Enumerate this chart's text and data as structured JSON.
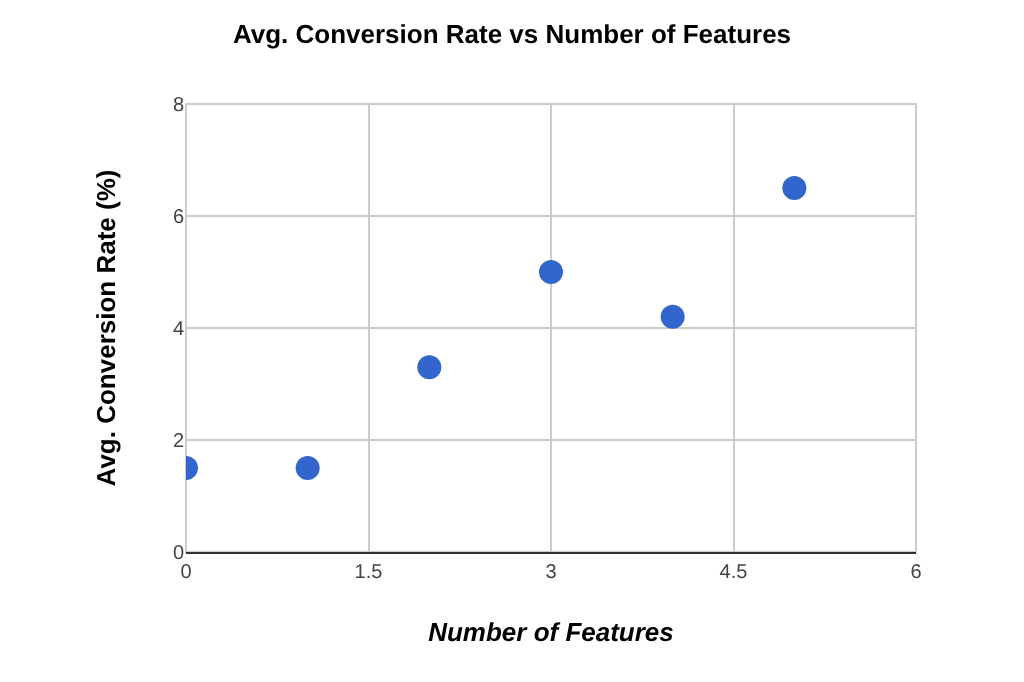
{
  "chart_data": {
    "type": "scatter",
    "title": "Avg. Conversion Rate vs Number of Features",
    "xlabel": "Number of Features",
    "ylabel": "Avg. Conversion Rate (%)",
    "x": [
      0,
      1,
      2,
      3,
      4,
      5
    ],
    "series": [
      {
        "color": "#3366cc",
        "values": [
          1.5,
          1.5,
          3.3,
          5.0,
          4.2,
          6.5
        ]
      }
    ],
    "xlim": [
      0,
      6
    ],
    "xticks": [
      0,
      1.5,
      3,
      4.5,
      6
    ],
    "ylim": [
      0,
      8
    ],
    "yticks": [
      0,
      2,
      4,
      6,
      8
    ],
    "grid": true,
    "marker": "circle"
  }
}
